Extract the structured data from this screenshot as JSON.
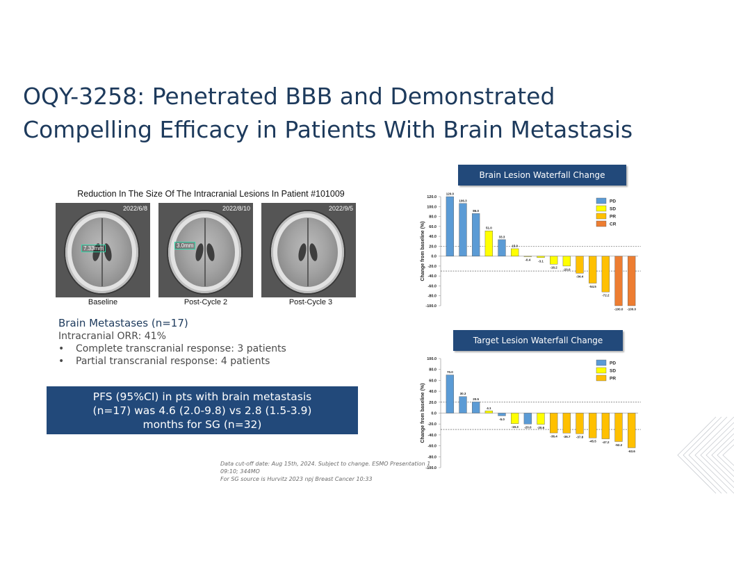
{
  "slide": {
    "title_line1": "OQY-3258: Penetrated BBB and Demonstrated",
    "title_line2": "Compelling Efficacy in Patients With Brain Metastasis",
    "image_caption": "Reduction In The Size Of The Intracranial Lesions In Patient #101009",
    "scans": [
      {
        "date": "2022/6/8",
        "label": "Baseline",
        "measurement": "7.33mm"
      },
      {
        "date": "2022/8/10",
        "label": "Post-Cycle 2",
        "measurement": "3.0mm"
      },
      {
        "date": "2022/9/5",
        "label": "Post-Cycle 3",
        "measurement": ""
      }
    ],
    "brain_mets": {
      "heading": "Brain Metastases (n=17)",
      "orr": "Intracranial ORR: 41%",
      "bullet_symbol": "•",
      "bullets": [
        "Complete transcranial response: 3 patients",
        "Partial transcranial response: 4 patients"
      ]
    },
    "pfs_box": {
      "line1": "PFS (95%CI) in pts with brain metastasis",
      "line2": "(n=17) was 4.6 (2.0-9.8) vs 2.8 (1.5-3.9)",
      "line3": "months for SG (n=32)"
    },
    "footnote": {
      "line1": "Data cut-off date: Aug 15th, 2024. Subject to change. ESMO Presentation 1",
      "line2": "09:10; 344MO",
      "line3": "For SG source is Hurvitz 2023 npj Breast Cancer 10:33"
    }
  },
  "chart_data": [
    {
      "type": "bar",
      "title": "Brain Lesion Waterfall Change",
      "ylabel": "Change from baseline (%)",
      "xlabel": "",
      "ylim": [
        -100,
        120
      ],
      "yticks": [
        120,
        100,
        80,
        60,
        40,
        20,
        0,
        -20,
        -40,
        -60,
        -80,
        -100
      ],
      "reference_lines": [
        20,
        -30
      ],
      "values": [
        120.0,
        106.3,
        86.0,
        51.0,
        33.3,
        15.0,
        -0.4,
        -3.1,
        -16.2,
        -20.0,
        -34.4,
        -54.5,
        -72.2,
        -100.0,
        -100.0
      ],
      "labels": [
        "120.0",
        "106.3",
        "86.0",
        "51.0",
        "33.3",
        "15.0",
        "-0.4",
        "-3.1",
        "-16.2",
        "-20.0",
        "-34.4",
        "-54.5",
        "-72.2",
        "-100.0",
        "-100.0"
      ],
      "response": [
        "PD",
        "PD",
        "PD",
        "SD",
        "PD",
        "SD",
        "SD",
        "SD",
        "SD",
        "SD",
        "PR",
        "PR",
        "PR",
        "CR",
        "CR"
      ],
      "legend": [
        {
          "name": "PD",
          "color": "#5b9bd5"
        },
        {
          "name": "SD",
          "color": "#ffff00"
        },
        {
          "name": "PR",
          "color": "#ffc000"
        },
        {
          "name": "CR",
          "color": "#ed7d31"
        }
      ]
    },
    {
      "type": "bar",
      "title": "Target Lesion Waterfall Change",
      "ylabel": "Change from baseline (%)",
      "xlabel": "",
      "ylim": [
        -100,
        100
      ],
      "yticks": [
        100,
        80,
        60,
        40,
        20,
        0,
        -20,
        -40,
        -60,
        -80,
        -100
      ],
      "reference_lines": [
        20,
        -30
      ],
      "values": [
        70.0,
        30.3,
        20.5,
        4.1,
        -5.0,
        -19.3,
        -20.0,
        -20.6,
        -36.4,
        -36.7,
        -37.8,
        -45.5,
        -47.2,
        -52.2,
        -63.6
      ],
      "labels": [
        "70.0",
        "30.3",
        "20.5",
        "4.1",
        "-5.0",
        "-19.3",
        "-20.0",
        "-20.6",
        "-36.4",
        "-36.7",
        "-37.8",
        "-45.5",
        "-47.2",
        "-52.2",
        "-63.6"
      ],
      "response": [
        "PD",
        "PD",
        "PD",
        "SD",
        "PD",
        "SD",
        "PD",
        "SD",
        "PR",
        "PR",
        "PR",
        "PR",
        "PR",
        "PR",
        "PR"
      ],
      "legend": [
        {
          "name": "PD",
          "color": "#5b9bd5"
        },
        {
          "name": "SD",
          "color": "#ffff00"
        },
        {
          "name": "PR",
          "color": "#ffc000"
        }
      ]
    }
  ]
}
